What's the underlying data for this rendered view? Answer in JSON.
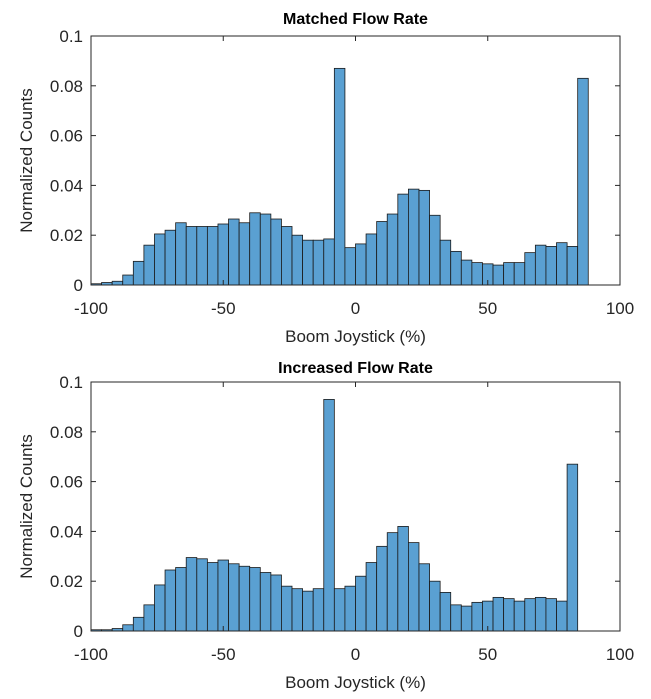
{
  "chart_data": [
    {
      "type": "bar",
      "title": "Matched Flow Rate",
      "xlabel": "Boom Joystick (%)",
      "ylabel": "Normalized Counts",
      "xlim": [
        -100,
        100
      ],
      "ylim": [
        0,
        0.1
      ],
      "xticks": [
        -100,
        -50,
        0,
        50,
        100
      ],
      "xtick_labels": [
        "-100",
        "-50",
        "0",
        "50",
        "100"
      ],
      "yticks": [
        0,
        0.02,
        0.04,
        0.06,
        0.08,
        0.1
      ],
      "ytick_labels": [
        "0",
        "0.02",
        "0.04",
        "0.06",
        "0.08",
        "0.1"
      ],
      "bin_width": 4,
      "bin_edges_start": -100,
      "bar_color": "#5aa0d2",
      "grid": false,
      "values": [
        0.0005,
        0.001,
        0.0015,
        0.004,
        0.0095,
        0.016,
        0.0205,
        0.022,
        0.025,
        0.0235,
        0.0235,
        0.0235,
        0.0245,
        0.0265,
        0.025,
        0.029,
        0.0285,
        0.0265,
        0.0235,
        0.02,
        0.018,
        0.018,
        0.0185,
        0.087,
        0.015,
        0.0165,
        0.0205,
        0.0255,
        0.0285,
        0.0365,
        0.0385,
        0.038,
        0.028,
        0.018,
        0.0135,
        0.01,
        0.009,
        0.0085,
        0.008,
        0.009,
        0.009,
        0.013,
        0.016,
        0.0155,
        0.017,
        0.0155,
        0.083
      ]
    },
    {
      "type": "bar",
      "title": "Increased Flow Rate",
      "xlabel": "Boom Joystick (%)",
      "ylabel": "Normalized Counts",
      "xlim": [
        -100,
        100
      ],
      "ylim": [
        0,
        0.1
      ],
      "xticks": [
        -100,
        -50,
        0,
        50,
        100
      ],
      "xtick_labels": [
        "-100",
        "-50",
        "0",
        "50",
        "100"
      ],
      "yticks": [
        0,
        0.02,
        0.04,
        0.06,
        0.08,
        0.1
      ],
      "ytick_labels": [
        "0",
        "0.02",
        "0.04",
        "0.06",
        "0.08",
        "0.1"
      ],
      "bin_width": 4,
      "bin_edges_start": -100,
      "bar_color": "#5aa0d2",
      "grid": false,
      "values": [
        0.0005,
        0.0005,
        0.001,
        0.0025,
        0.0055,
        0.0105,
        0.0185,
        0.0245,
        0.0255,
        0.0295,
        0.029,
        0.0275,
        0.0285,
        0.027,
        0.026,
        0.0255,
        0.0235,
        0.0225,
        0.018,
        0.017,
        0.016,
        0.017,
        0.093,
        0.017,
        0.018,
        0.022,
        0.0275,
        0.034,
        0.0395,
        0.042,
        0.0355,
        0.027,
        0.02,
        0.0155,
        0.0105,
        0.01,
        0.0115,
        0.012,
        0.0135,
        0.013,
        0.012,
        0.013,
        0.0135,
        0.013,
        0.012,
        0.067
      ]
    }
  ]
}
